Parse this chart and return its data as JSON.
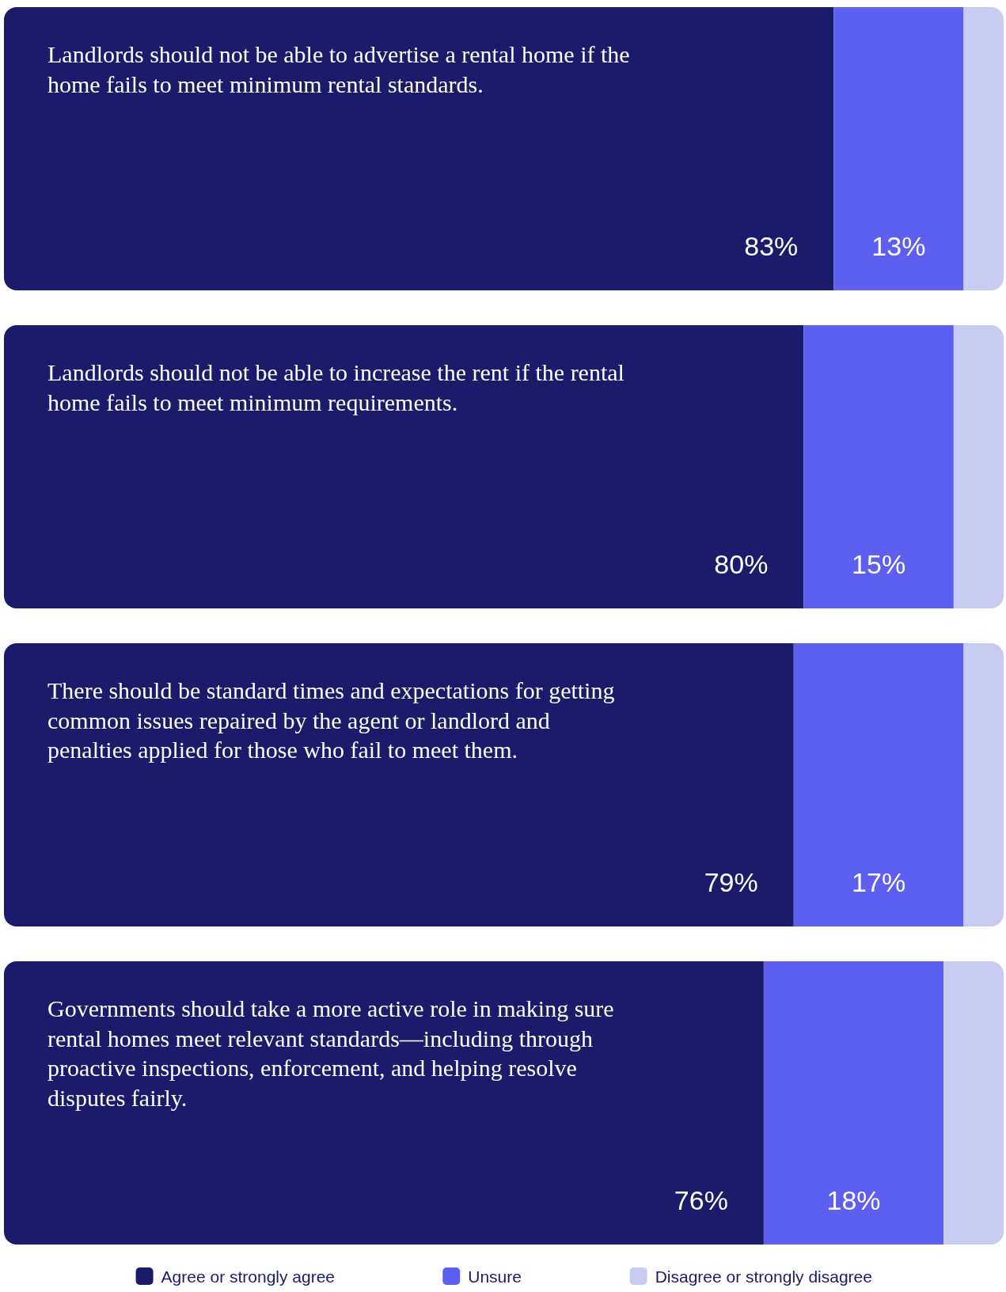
{
  "chart_data": {
    "type": "bar",
    "orientation": "horizontal",
    "stacked": true,
    "categories": [
      "Landlords should not be able to advertise a rental home if the home fails to meet minimum rental standards.",
      "Landlords should not be able to increase the rent if the rental home fails to meet minimum requirements.",
      "There should be standard times and expectations for getting common issues repaired by the agent or landlord and penalties applied for those who fail to meet them.",
      "Governments should take a more active role in making sure rental homes meet relevant standards—including through proactive inspections, enforcement, and helping resolve disputes fairly."
    ],
    "series": [
      {
        "name": "Agree or strongly agree",
        "color": "#1b1a6b",
        "values": [
          83,
          80,
          79,
          76
        ],
        "value_labels": [
          "83%",
          "80%",
          "79%",
          "76%"
        ]
      },
      {
        "name": "Unsure",
        "color": "#5c5ff0",
        "values": [
          13,
          15,
          17,
          18
        ],
        "value_labels": [
          "13%",
          "15%",
          "17%",
          "18%"
        ]
      },
      {
        "name": "Disagree or strongly disagree",
        "color": "#c8cbf2",
        "values": [
          4,
          5,
          4,
          6
        ],
        "value_labels": [
          null,
          null,
          null,
          null
        ]
      }
    ],
    "xlim": [
      0,
      100
    ],
    "legend": "bottom"
  }
}
